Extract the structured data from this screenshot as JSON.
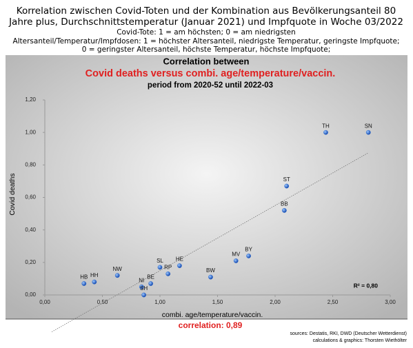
{
  "header": {
    "lines": [
      "Korrelation zwischen Covid-Toten und der Kombination aus Bevölkerungsanteil 80",
      "Jahre plus, Durchschnittstemperatur (Januar 2021) und Impfquote in Woche 03/2022",
      "Covid-Tote: 1 = am höchsten; 0 = am niedrigsten",
      "Altersanteil/Temperatur/Impfdosen: 1 = höchster Altersanteil, niedrigste Temperatur, geringste Impfquote;",
      "0 = geringster Altersanteil, höchste Temperatur, höchste Impfquote;"
    ]
  },
  "chart_data": {
    "type": "scatter",
    "title": "Correlation between",
    "subtitle": "Covid deaths versus combi. age/temperature/vaccin.",
    "period": "period from 2020-52 until 2022-03",
    "x_label": "combi. age/temperature/vaccin.",
    "y_label": "Covid deaths",
    "annotation": "R² = 0,80",
    "correlation": "correlation: 0,89",
    "color": "#1a5fd0",
    "point_labels": [
      "TH",
      "SN",
      "ST",
      "BB",
      "BY",
      "MV",
      "BW",
      "HE",
      "SL",
      "RP",
      "BE",
      "NI",
      "SH",
      "NW",
      "HH",
      "HB"
    ],
    "x": [
      2.44,
      2.81,
      2.1,
      2.08,
      1.77,
      1.66,
      1.44,
      1.17,
      1.0,
      1.07,
      0.92,
      0.84,
      0.86,
      0.63,
      0.43,
      0.34
    ],
    "values": [
      1.0,
      1.0,
      0.67,
      0.52,
      0.24,
      0.21,
      0.11,
      0.18,
      0.17,
      0.13,
      0.07,
      0.05,
      0.0,
      0.12,
      0.08,
      0.07
    ],
    "xlim": [
      0,
      3
    ],
    "ylim": [
      0,
      1.2
    ],
    "xticks": [
      {
        "value": 0,
        "label": "0,00"
      },
      {
        "value": 0.5,
        "label": "0,50"
      },
      {
        "value": 1,
        "label": "1,00"
      },
      {
        "value": 1.5,
        "label": "1,50"
      },
      {
        "value": 2,
        "label": "2,00"
      },
      {
        "value": 2.5,
        "label": "2,50"
      },
      {
        "value": 3,
        "label": "3,00"
      }
    ],
    "yticks": [
      {
        "value": 0,
        "label": "0,00"
      },
      {
        "value": 0.2,
        "label": "0,20"
      },
      {
        "value": 0.4,
        "label": "0,40"
      },
      {
        "value": 0.6,
        "label": "0,60"
      },
      {
        "value": 0.8,
        "label": "0,80"
      },
      {
        "value": 1,
        "label": "1,00"
      },
      {
        "value": 1.2,
        "label": "1,20"
      }
    ],
    "trendline": true
  },
  "footer": {
    "sources": [
      "sources: Destatis, RKI, DWD (Deutscher Wetterdienst)",
      "calculations & graphics: Thorsten Wiethölter"
    ]
  }
}
